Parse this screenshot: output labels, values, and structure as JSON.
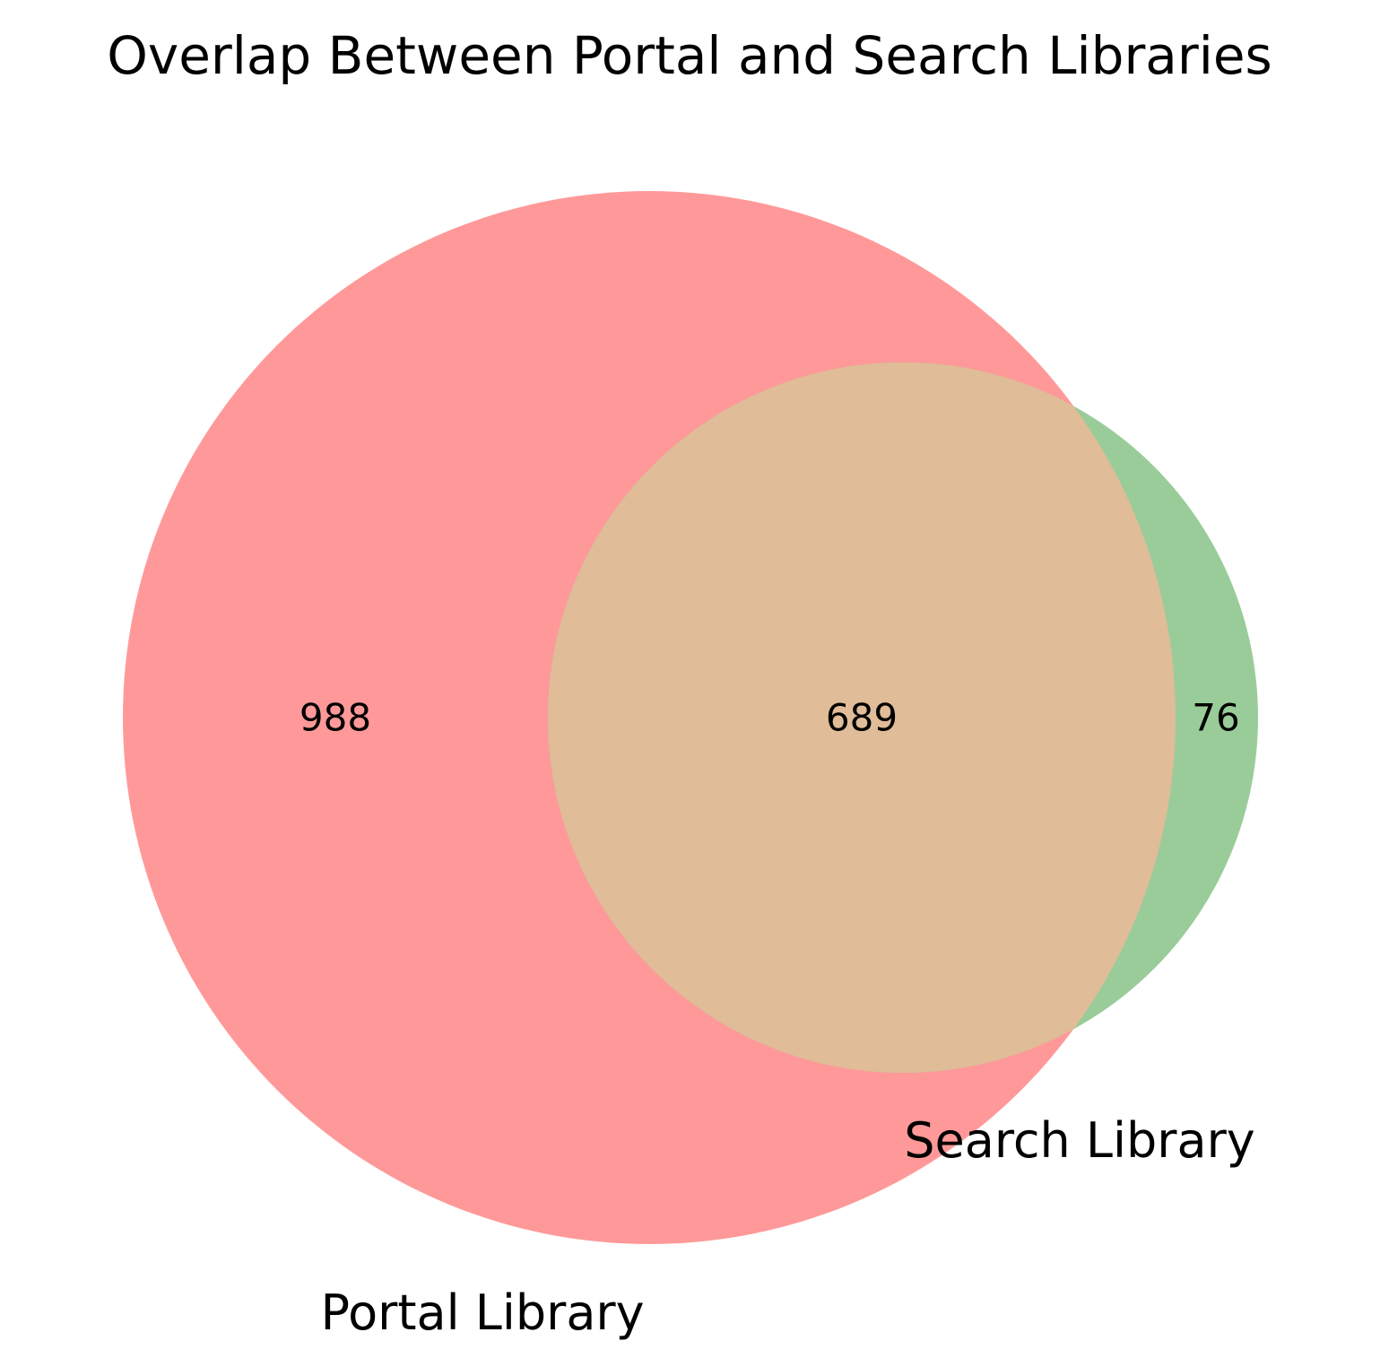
{
  "diagram": {
    "title": "Overlap Between Portal and Search Libraries",
    "sets": [
      {
        "name": "Portal Library",
        "color": "#ff9999"
      },
      {
        "name": "Search Library",
        "color": "#99cc99"
      }
    ],
    "overlap_color": "#e0bc98",
    "regions": {
      "portal_only": "988",
      "both": "689",
      "search_only": "76"
    }
  }
}
